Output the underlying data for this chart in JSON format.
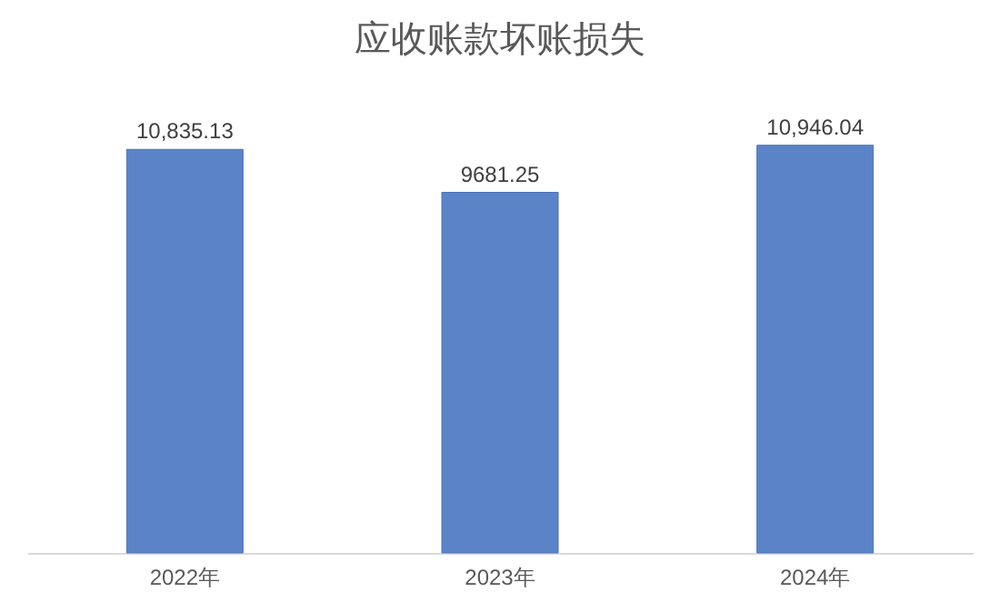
{
  "chart_data": {
    "type": "bar",
    "title": "应收账款坏账损失",
    "categories": [
      "2022年",
      "2023年",
      "2024年"
    ],
    "values": [
      10835.13,
      9681.25,
      10946.04
    ],
    "value_labels": [
      "10,835.13",
      "9681.25",
      "10,946.04"
    ],
    "color": "#5b84c8"
  }
}
